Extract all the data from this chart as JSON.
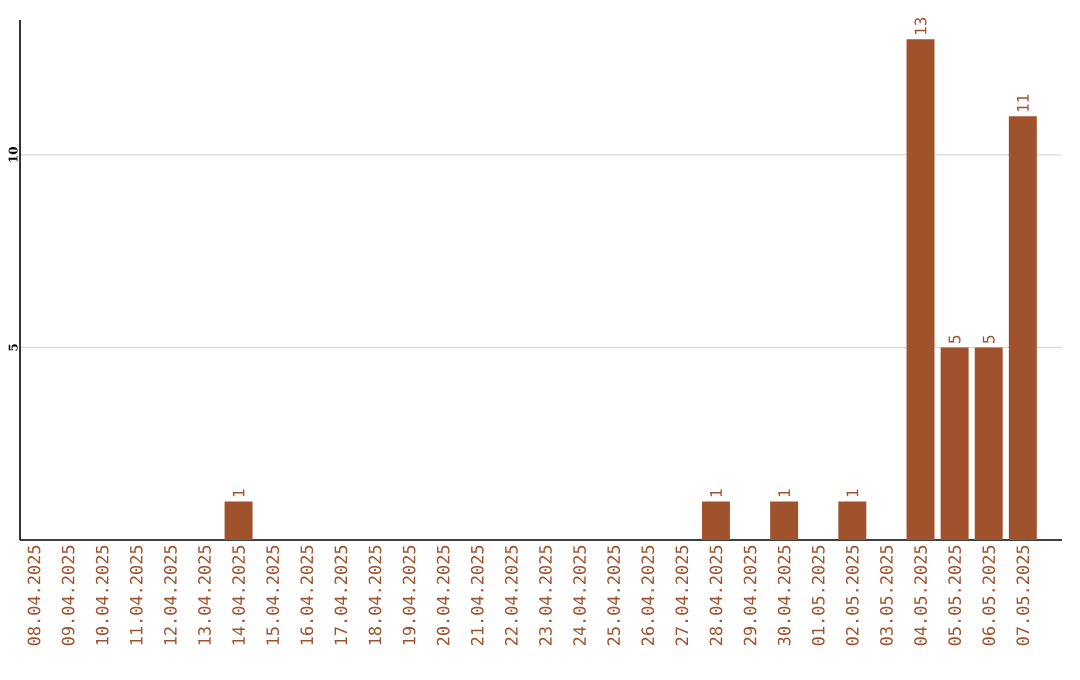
{
  "chart_data": {
    "type": "bar",
    "categories": [
      "08.04.2025",
      "09.04.2025",
      "10.04.2025",
      "11.04.2025",
      "12.04.2025",
      "13.04.2025",
      "14.04.2025",
      "15.04.2025",
      "16.04.2025",
      "17.04.2025",
      "18.04.2025",
      "19.04.2025",
      "20.04.2025",
      "21.04.2025",
      "22.04.2025",
      "23.04.2025",
      "24.04.2025",
      "25.04.2025",
      "26.04.2025",
      "27.04.2025",
      "28.04.2025",
      "29.04.2025",
      "30.04.2025",
      "01.05.2025",
      "02.05.2025",
      "03.05.2025",
      "04.05.2025",
      "05.05.2025",
      "06.05.2025",
      "07.05.2025"
    ],
    "values": [
      0,
      0,
      0,
      0,
      0,
      0,
      1,
      0,
      0,
      0,
      0,
      0,
      0,
      0,
      0,
      0,
      0,
      0,
      0,
      0,
      1,
      0,
      1,
      0,
      1,
      0,
      13,
      5,
      5,
      11
    ],
    "value_labels": [
      null,
      null,
      null,
      null,
      null,
      null,
      "1",
      null,
      null,
      null,
      null,
      null,
      null,
      null,
      null,
      null,
      null,
      null,
      null,
      null,
      "1",
      null,
      "1",
      null,
      "1",
      null,
      "13",
      "5",
      "5",
      "11"
    ],
    "color": "#a0522d",
    "ylim": [
      0,
      13.5
    ],
    "yticks": [
      5,
      10
    ],
    "grid": "y"
  }
}
